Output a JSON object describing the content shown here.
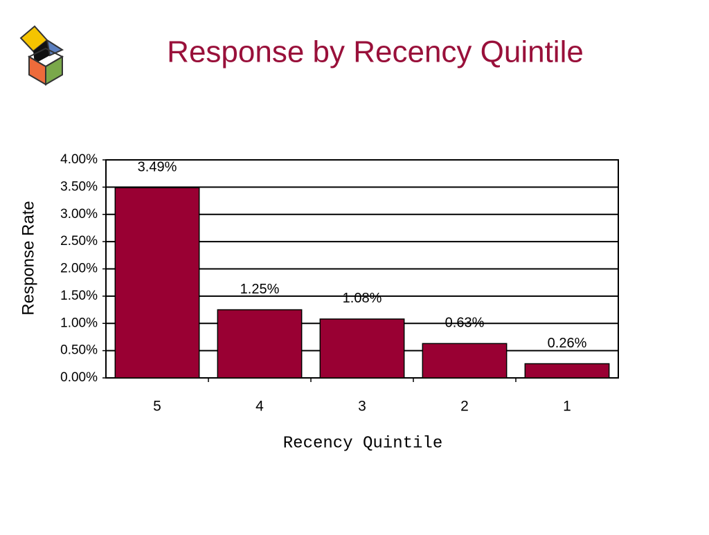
{
  "chart_data": {
    "type": "bar",
    "title": "Response by Recency Quintile",
    "x_label": "Recency Quintile",
    "y_label": "Response Rate",
    "categories": [
      "5",
      "4",
      "3",
      "2",
      "1"
    ],
    "values": [
      3.49,
      1.25,
      1.08,
      0.63,
      0.26
    ],
    "value_labels": [
      "3.49%",
      "1.25%",
      "1.08%",
      "0.63%",
      "0.26%"
    ],
    "color": "#990033",
    "ylim": [
      0,
      4
    ],
    "yticks": [
      {
        "value": 0,
        "label": "0.00%"
      },
      {
        "value": 0.5,
        "label": "0.50%"
      },
      {
        "value": 1,
        "label": "1.00%"
      },
      {
        "value": 1.5,
        "label": "1.50%"
      },
      {
        "value": 2,
        "label": "2.00%"
      },
      {
        "value": 2.5,
        "label": "2.50%"
      },
      {
        "value": 3,
        "label": "3.00%"
      },
      {
        "value": 3.5,
        "label": "3.50%"
      },
      {
        "value": 4,
        "label": "4.00%"
      }
    ],
    "grid": true
  }
}
